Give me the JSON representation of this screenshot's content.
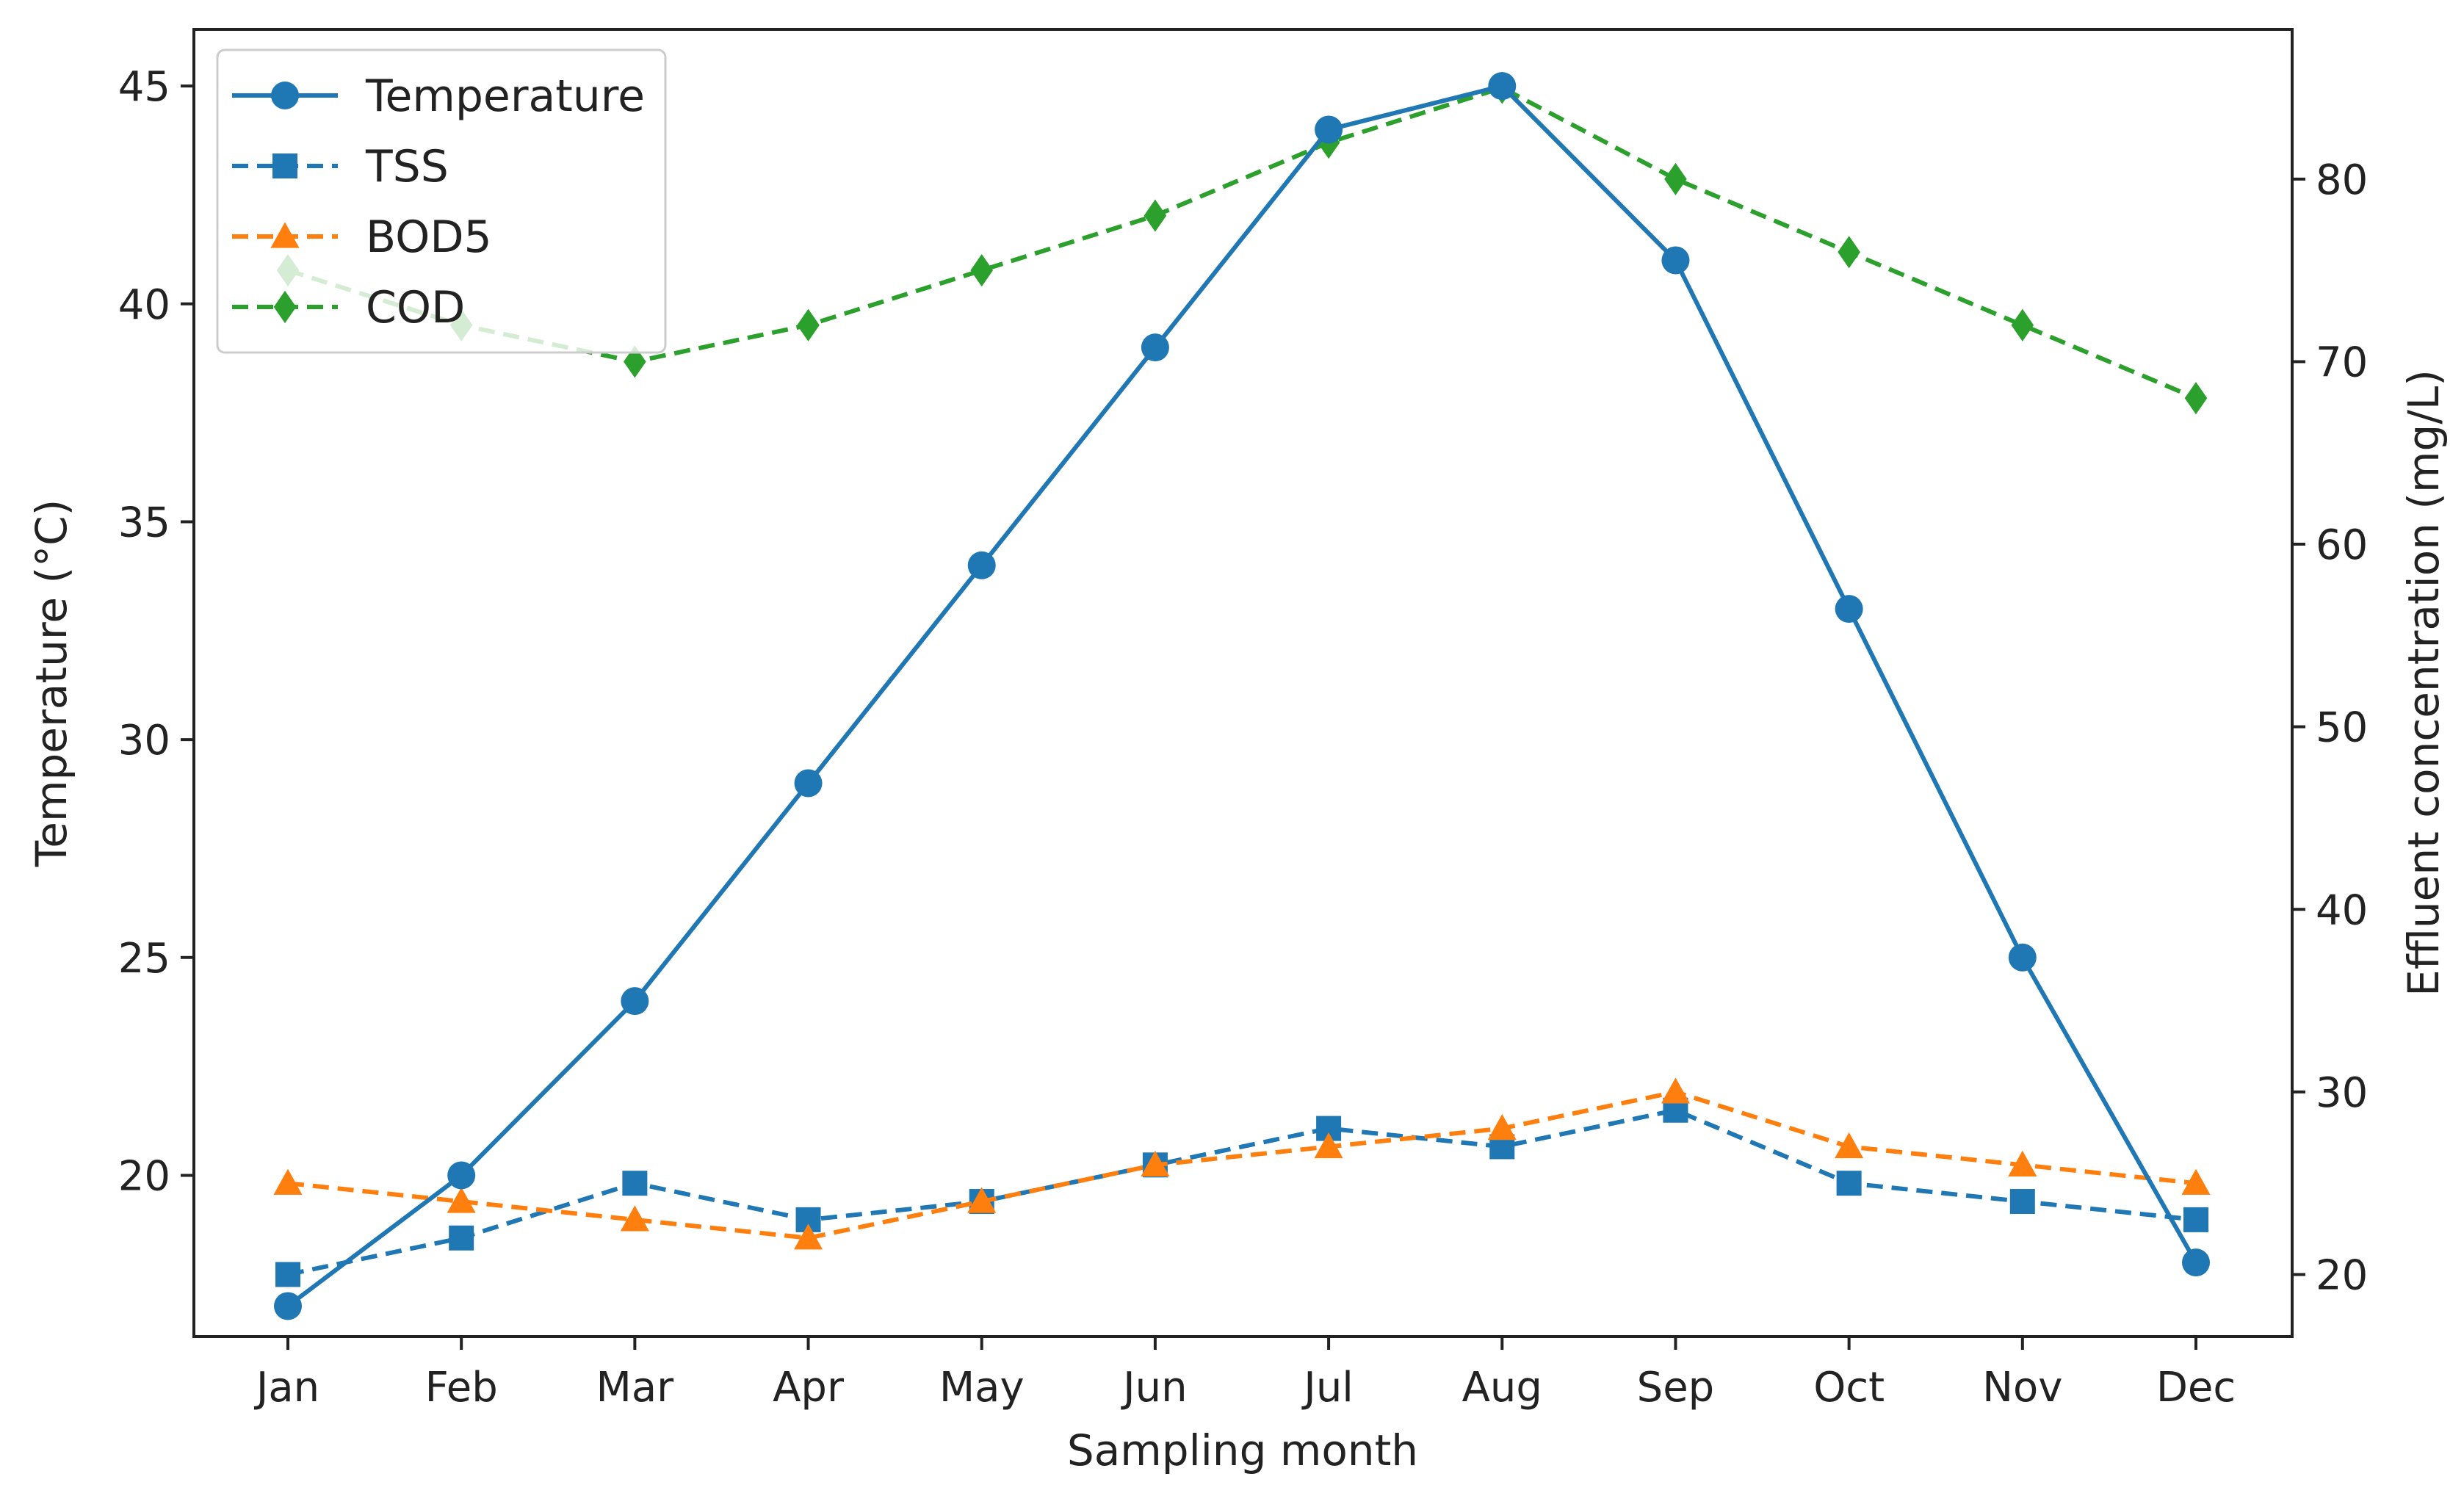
{
  "chart_data": {
    "type": "line",
    "xlabel": "Sampling month",
    "ylabel_left": "Temperature (°C)",
    "ylabel_right": "Effluent concentration (mg/L)",
    "categories": [
      "Jan",
      "Feb",
      "Mar",
      "Apr",
      "May",
      "Jun",
      "Jul",
      "Aug",
      "Sep",
      "Oct",
      "Nov",
      "Dec"
    ],
    "ylim_left": [
      16.3,
      46.3
    ],
    "ylim_right": [
      16.6,
      88.2
    ],
    "yticks_left": [
      20,
      25,
      30,
      35,
      40,
      45
    ],
    "yticks_right": [
      20,
      30,
      40,
      50,
      60,
      70,
      80
    ],
    "legend_position": "upper-left",
    "grid": false,
    "series": [
      {
        "name": "Temperature",
        "axis": "left",
        "style": "solid",
        "marker": "circle",
        "color": "#1f77b4",
        "values": [
          17,
          20,
          24,
          29,
          34,
          39,
          44,
          45,
          41,
          33,
          25,
          18
        ]
      },
      {
        "name": "TSS",
        "axis": "right",
        "style": "dashed",
        "marker": "square",
        "color": "#1f77b4",
        "values": [
          20,
          22,
          25,
          23,
          24,
          26,
          28,
          27,
          29,
          25,
          24,
          23
        ]
      },
      {
        "name": "BOD5",
        "axis": "right",
        "style": "dashed",
        "marker": "triangle",
        "color": "#ff7f0e",
        "values": [
          25,
          24,
          23,
          22,
          24,
          26,
          27,
          28,
          30,
          27,
          26,
          25
        ]
      },
      {
        "name": "COD",
        "axis": "right",
        "style": "dashed",
        "marker": "diamond",
        "color": "#2ca02c",
        "values": [
          75,
          72,
          70,
          72,
          75,
          78,
          82,
          85,
          80,
          76,
          72,
          68
        ]
      }
    ]
  }
}
